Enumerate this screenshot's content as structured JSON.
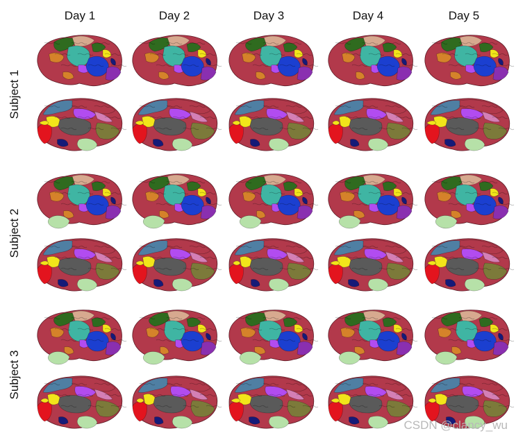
{
  "columns": [
    "Day 1",
    "Day 2",
    "Day 3",
    "Day 4",
    "Day 5"
  ],
  "rows": [
    "Subject 1",
    "Subject 2",
    "Subject 3"
  ],
  "views": [
    "lateral",
    "medial"
  ],
  "colors": {
    "base": "#b2394b",
    "teal": "#3fb5a3",
    "blue": "#1b3fd0",
    "purple": "#8a2fb0",
    "violet": "#b24cf0",
    "orange": "#d5822a",
    "green": "#2f6b1f",
    "olive": "#7c7a3a",
    "tan": "#d7a98f",
    "pink": "#d47fb5",
    "steel": "#4f7fa3",
    "yellow": "#f2e51a",
    "red": "#e3141e",
    "navy": "#151a78",
    "mint": "#b6e1a8",
    "gray": "#5a5a5a"
  },
  "watermark": "CSDN @clancy_wu"
}
